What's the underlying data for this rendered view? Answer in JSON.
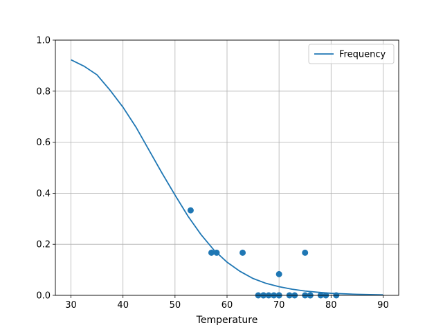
{
  "chart_data": {
    "type": "scatter",
    "title": "",
    "xlabel": "Temperature",
    "ylabel": "",
    "xlim": [
      27,
      93
    ],
    "ylim": [
      0,
      1.0
    ],
    "xticks": [
      30,
      40,
      50,
      60,
      70,
      80,
      90
    ],
    "yticks": [
      0.0,
      0.2,
      0.4,
      0.6,
      0.8,
      1.0
    ],
    "xtick_labels": [
      "30",
      "40",
      "50",
      "60",
      "70",
      "80",
      "90"
    ],
    "ytick_labels": [
      "0.0",
      "0.2",
      "0.4",
      "0.6",
      "0.8",
      "1.0"
    ],
    "grid": true,
    "legend_position": "top-right",
    "series": [
      {
        "name": "Frequency",
        "kind": "line",
        "color": "#1f77b4",
        "x": [
          30,
          32.5,
          35,
          37.5,
          40,
          42.5,
          45,
          47.5,
          50,
          52.5,
          55,
          57.5,
          60,
          62.5,
          65,
          67.5,
          70,
          72.5,
          75,
          77.5,
          80,
          82.5,
          85,
          87.5,
          90
        ],
        "y": [
          0.923,
          0.898,
          0.864,
          0.804,
          0.737,
          0.659,
          0.569,
          0.479,
          0.393,
          0.31,
          0.238,
          0.177,
          0.13,
          0.094,
          0.066,
          0.047,
          0.034,
          0.024,
          0.017,
          0.012,
          0.008,
          0.006,
          0.004,
          0.003,
          0.002
        ]
      },
      {
        "name": "",
        "kind": "scatter",
        "color": "#1f77b4",
        "x": [
          53,
          57,
          58,
          63,
          66,
          67,
          67,
          68,
          69,
          70,
          70,
          70,
          72,
          73,
          75,
          75,
          76,
          76,
          78,
          79,
          81
        ],
        "y": [
          0.333,
          0.167,
          0.167,
          0.167,
          0,
          0,
          0,
          0,
          0,
          0.083,
          0,
          0,
          0,
          0,
          0.167,
          0,
          0,
          0,
          0,
          0,
          0
        ]
      }
    ]
  }
}
